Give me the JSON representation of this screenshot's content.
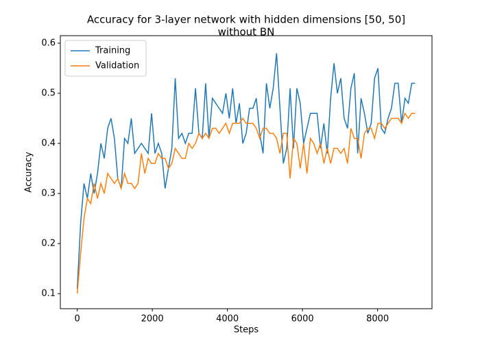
{
  "chart_data": {
    "type": "line",
    "title": [
      "Accuracy for 3-layer network with hidden dimensions [50, 50]",
      "without BN"
    ],
    "xlabel": "Steps",
    "ylabel": "Accuracy",
    "x": [
      0,
      90,
      180,
      270,
      360,
      450,
      540,
      630,
      720,
      810,
      900,
      990,
      1080,
      1170,
      1260,
      1350,
      1440,
      1530,
      1620,
      1710,
      1800,
      1890,
      1980,
      2070,
      2160,
      2250,
      2340,
      2430,
      2520,
      2610,
      2700,
      2790,
      2880,
      2970,
      3060,
      3150,
      3240,
      3330,
      3420,
      3510,
      3600,
      3690,
      3780,
      3870,
      3960,
      4050,
      4140,
      4230,
      4320,
      4410,
      4500,
      4590,
      4680,
      4770,
      4860,
      4950,
      5040,
      5130,
      5220,
      5310,
      5400,
      5490,
      5580,
      5670,
      5760,
      5850,
      5940,
      6030,
      6120,
      6210,
      6300,
      6390,
      6480,
      6570,
      6660,
      6750,
      6840,
      6930,
      7020,
      7110,
      7200,
      7290,
      7380,
      7470,
      7560,
      7650,
      7740,
      7830,
      7920,
      8010,
      8100,
      8190,
      8280,
      8370,
      8460,
      8550,
      8640,
      8730,
      8820,
      8910,
      9000
    ],
    "series": [
      {
        "name": "Training",
        "color": "#1f77b4",
        "values": [
          0.11,
          0.24,
          0.32,
          0.29,
          0.34,
          0.3,
          0.34,
          0.4,
          0.37,
          0.43,
          0.45,
          0.41,
          0.33,
          0.31,
          0.41,
          0.4,
          0.45,
          0.38,
          0.39,
          0.4,
          0.39,
          0.38,
          0.46,
          0.38,
          0.4,
          0.38,
          0.31,
          0.35,
          0.39,
          0.53,
          0.41,
          0.42,
          0.4,
          0.42,
          0.42,
          0.51,
          0.42,
          0.41,
          0.52,
          0.41,
          0.49,
          0.48,
          0.47,
          0.46,
          0.5,
          0.45,
          0.51,
          0.44,
          0.48,
          0.4,
          0.42,
          0.47,
          0.47,
          0.49,
          0.42,
          0.38,
          0.52,
          0.47,
          0.51,
          0.58,
          0.47,
          0.36,
          0.39,
          0.51,
          0.39,
          0.51,
          0.48,
          0.4,
          0.43,
          0.46,
          0.46,
          0.46,
          0.39,
          0.44,
          0.38,
          0.49,
          0.56,
          0.5,
          0.53,
          0.45,
          0.43,
          0.51,
          0.54,
          0.38,
          0.49,
          0.46,
          0.42,
          0.44,
          0.53,
          0.55,
          0.43,
          0.42,
          0.45,
          0.47,
          0.52,
          0.52,
          0.44,
          0.49,
          0.48,
          0.52,
          0.52
        ]
      },
      {
        "name": "Validation",
        "color": "#ff7f0e",
        "values": [
          0.1,
          0.18,
          0.25,
          0.29,
          0.28,
          0.32,
          0.29,
          0.32,
          0.3,
          0.34,
          0.33,
          0.32,
          0.33,
          0.31,
          0.34,
          0.32,
          0.32,
          0.31,
          0.32,
          0.38,
          0.34,
          0.37,
          0.36,
          0.36,
          0.38,
          0.37,
          0.37,
          0.35,
          0.36,
          0.39,
          0.38,
          0.37,
          0.37,
          0.4,
          0.39,
          0.4,
          0.42,
          0.41,
          0.42,
          0.41,
          0.43,
          0.43,
          0.42,
          0.43,
          0.44,
          0.42,
          0.44,
          0.44,
          0.44,
          0.45,
          0.44,
          0.44,
          0.44,
          0.43,
          0.41,
          0.43,
          0.43,
          0.42,
          0.42,
          0.41,
          0.38,
          0.42,
          0.42,
          0.33,
          0.41,
          0.4,
          0.35,
          0.4,
          0.34,
          0.41,
          0.4,
          0.38,
          0.4,
          0.36,
          0.39,
          0.36,
          0.39,
          0.39,
          0.38,
          0.39,
          0.36,
          0.43,
          0.41,
          0.41,
          0.37,
          0.42,
          0.43,
          0.43,
          0.41,
          0.44,
          0.44,
          0.43,
          0.44,
          0.45,
          0.45,
          0.45,
          0.44,
          0.46,
          0.45,
          0.46,
          0.46
        ]
      }
    ],
    "xlim": [
      -450,
      9450
    ],
    "xticks": [
      0,
      2000,
      4000,
      6000,
      8000
    ],
    "ylim": [
      0.07,
      0.615
    ],
    "yticks": [
      0.1,
      0.2,
      0.3,
      0.4,
      0.5,
      0.6
    ],
    "legend": "upper left",
    "grid": false
  }
}
